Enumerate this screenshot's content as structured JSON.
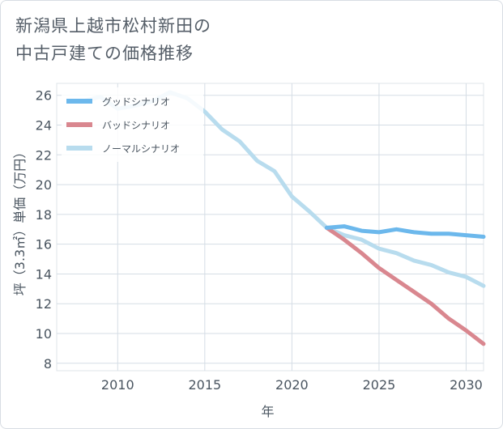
{
  "title_lines": [
    "新潟県上越市松村新田の",
    "中古戸建ての価格推移"
  ],
  "chart_data": {
    "type": "line",
    "xlabel": "年",
    "ylabel": "坪（3.3㎡）単価（万円）",
    "xlim": [
      2006.5,
      2031
    ],
    "ylim": [
      7.5,
      26.8
    ],
    "xticks": [
      2010,
      2015,
      2020,
      2025,
      2030
    ],
    "yticks": [
      8,
      10,
      12,
      14,
      16,
      18,
      20,
      22,
      24,
      26
    ],
    "grid": true,
    "legend_position": "top-left",
    "series": [
      {
        "name": "グッドシナリオ",
        "color": "#6cb8ec",
        "x": [
          2022,
          2023,
          2024,
          2025,
          2026,
          2027,
          2028,
          2029,
          2030,
          2031
        ],
        "y": [
          17.1,
          17.2,
          16.9,
          16.8,
          17.0,
          16.8,
          16.7,
          16.7,
          16.6,
          16.5
        ]
      },
      {
        "name": "バッドシナリオ",
        "color": "#d9878f",
        "x": [
          2022,
          2023,
          2024,
          2025,
          2026,
          2027,
          2028,
          2029,
          2030,
          2031
        ],
        "y": [
          17.1,
          16.3,
          15.4,
          14.4,
          13.6,
          12.8,
          12.0,
          11.0,
          10.2,
          9.3
        ]
      },
      {
        "name": "ノーマルシナリオ",
        "color": "#b8dcee",
        "x": [
          2008,
          2009,
          2010,
          2011,
          2012,
          2013,
          2014,
          2015,
          2016,
          2017,
          2018,
          2019,
          2020,
          2021,
          2022,
          2023,
          2024,
          2025,
          2026,
          2027,
          2028,
          2029,
          2030,
          2031
        ],
        "y": [
          25.6,
          25.9,
          25.1,
          25.3,
          25.6,
          26.2,
          25.8,
          24.9,
          23.7,
          22.9,
          21.6,
          20.9,
          19.2,
          18.2,
          17.1,
          16.6,
          16.3,
          15.7,
          15.4,
          14.9,
          14.6,
          14.1,
          13.8,
          13.2
        ]
      }
    ]
  }
}
